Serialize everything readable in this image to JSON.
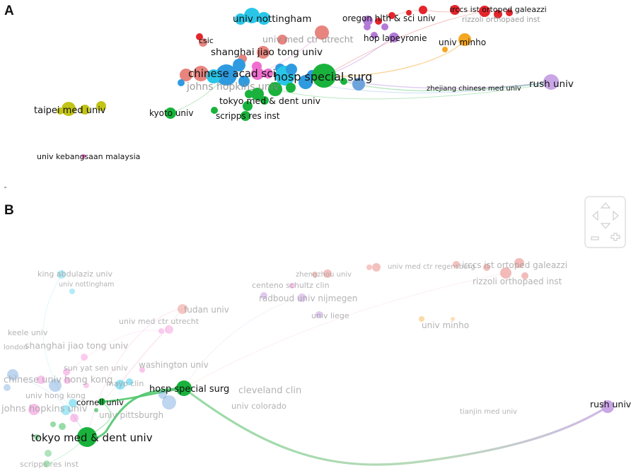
{
  "panels": [
    {
      "letter": "A",
      "labels": [
        {
          "text": "univ nottingham",
          "emphasis": "strong"
        },
        {
          "text": "oregon hlth & sci univ",
          "emphasis": "strong"
        },
        {
          "text": "irccs ist ortoped galeazzi",
          "emphasis": "strong"
        },
        {
          "text": "rizzoli orthopaed inst",
          "emphasis": "faded"
        },
        {
          "text": "csic",
          "emphasis": "strong"
        },
        {
          "text": "univ med ctr utrecht",
          "emphasis": "faded"
        },
        {
          "text": "hop lapeyronie",
          "emphasis": "strong"
        },
        {
          "text": "univ minho",
          "emphasis": "strong"
        },
        {
          "text": "shanghai jiao tong univ",
          "emphasis": "strong"
        },
        {
          "text": "chinese acad sci",
          "emphasis": "strong"
        },
        {
          "text": "hosp special surg",
          "emphasis": "strong"
        },
        {
          "text": "johns hopkins univ",
          "emphasis": "faded"
        },
        {
          "text": "zhejiang chinese med univ",
          "emphasis": "strong"
        },
        {
          "text": "rush univ",
          "emphasis": "strong"
        },
        {
          "text": "tokyo med & dent univ",
          "emphasis": "strong"
        },
        {
          "text": "taipei med univ",
          "emphasis": "strong"
        },
        {
          "text": "kyoto univ",
          "emphasis": "strong"
        },
        {
          "text": "scripps res inst",
          "emphasis": "strong"
        },
        {
          "text": "univ kebangsaan malaysia",
          "emphasis": "strong"
        }
      ]
    },
    {
      "letter": "B",
      "labels": [
        {
          "text": "king abdulaziz univ",
          "emphasis": "faded"
        },
        {
          "text": "univ nottingham",
          "emphasis": "faded"
        },
        {
          "text": "zhengzhou univ",
          "emphasis": "faded"
        },
        {
          "text": "univ med ctr regensburg",
          "emphasis": "faded"
        },
        {
          "text": "irccs ist ortoped galeazzi",
          "emphasis": "faded"
        },
        {
          "text": "rizzoli orthopaed inst",
          "emphasis": "faded"
        },
        {
          "text": "centeno schultz clin",
          "emphasis": "faded"
        },
        {
          "text": "radboud univ nijmegen",
          "emphasis": "faded"
        },
        {
          "text": "fudan univ",
          "emphasis": "faded"
        },
        {
          "text": "univ liege",
          "emphasis": "faded"
        },
        {
          "text": "keele univ",
          "emphasis": "faded"
        },
        {
          "text": "univ med ctr utrecht",
          "emphasis": "faded"
        },
        {
          "text": "univ minho",
          "emphasis": "faded"
        },
        {
          "text": "london",
          "emphasis": "faded"
        },
        {
          "text": "shanghai jiao tong univ",
          "emphasis": "faded"
        },
        {
          "text": "sun yat sen univ",
          "emphasis": "faded"
        },
        {
          "text": "washington univ",
          "emphasis": "faded"
        },
        {
          "text": "chinese univ hong kong",
          "emphasis": "faded"
        },
        {
          "text": "mayo clin",
          "emphasis": "faded"
        },
        {
          "text": "hosp special surg",
          "emphasis": "strong"
        },
        {
          "text": "cleveland clin",
          "emphasis": "faded"
        },
        {
          "text": "univ hong kong",
          "emphasis": "faded"
        },
        {
          "text": "cornell univ",
          "emphasis": "strong"
        },
        {
          "text": "univ colorado",
          "emphasis": "faded"
        },
        {
          "text": "johns hopkins univ",
          "emphasis": "faded"
        },
        {
          "text": "univ pittsburgh",
          "emphasis": "faded"
        },
        {
          "text": "tianjin med univ",
          "emphasis": "faded"
        },
        {
          "text": "rush univ",
          "emphasis": "strong"
        },
        {
          "text": "tokyo med & dent univ",
          "emphasis": "strong"
        },
        {
          "text": "scripps res inst",
          "emphasis": "faded"
        }
      ]
    }
  ],
  "cluster_colors": {
    "red": "#e5242c",
    "purple": "#b37ad8",
    "orange": "#f5a623",
    "cyan": "#29c6e8",
    "blue": "#2e9be0",
    "green": "#19b23c",
    "yellow": "#c2c417",
    "pink": "#f06fcf",
    "salmon": "#e8847e",
    "lavender": "#c9a6e6",
    "steel": "#6fa3dc"
  },
  "navigator": {
    "up": "navigator-up-arrow",
    "down": "navigator-down-arrow",
    "left": "navigator-left-arrow",
    "right": "navigator-right-arrow",
    "zoom_out": "zoom-out-icon",
    "zoom_in": "zoom-in-icon"
  }
}
